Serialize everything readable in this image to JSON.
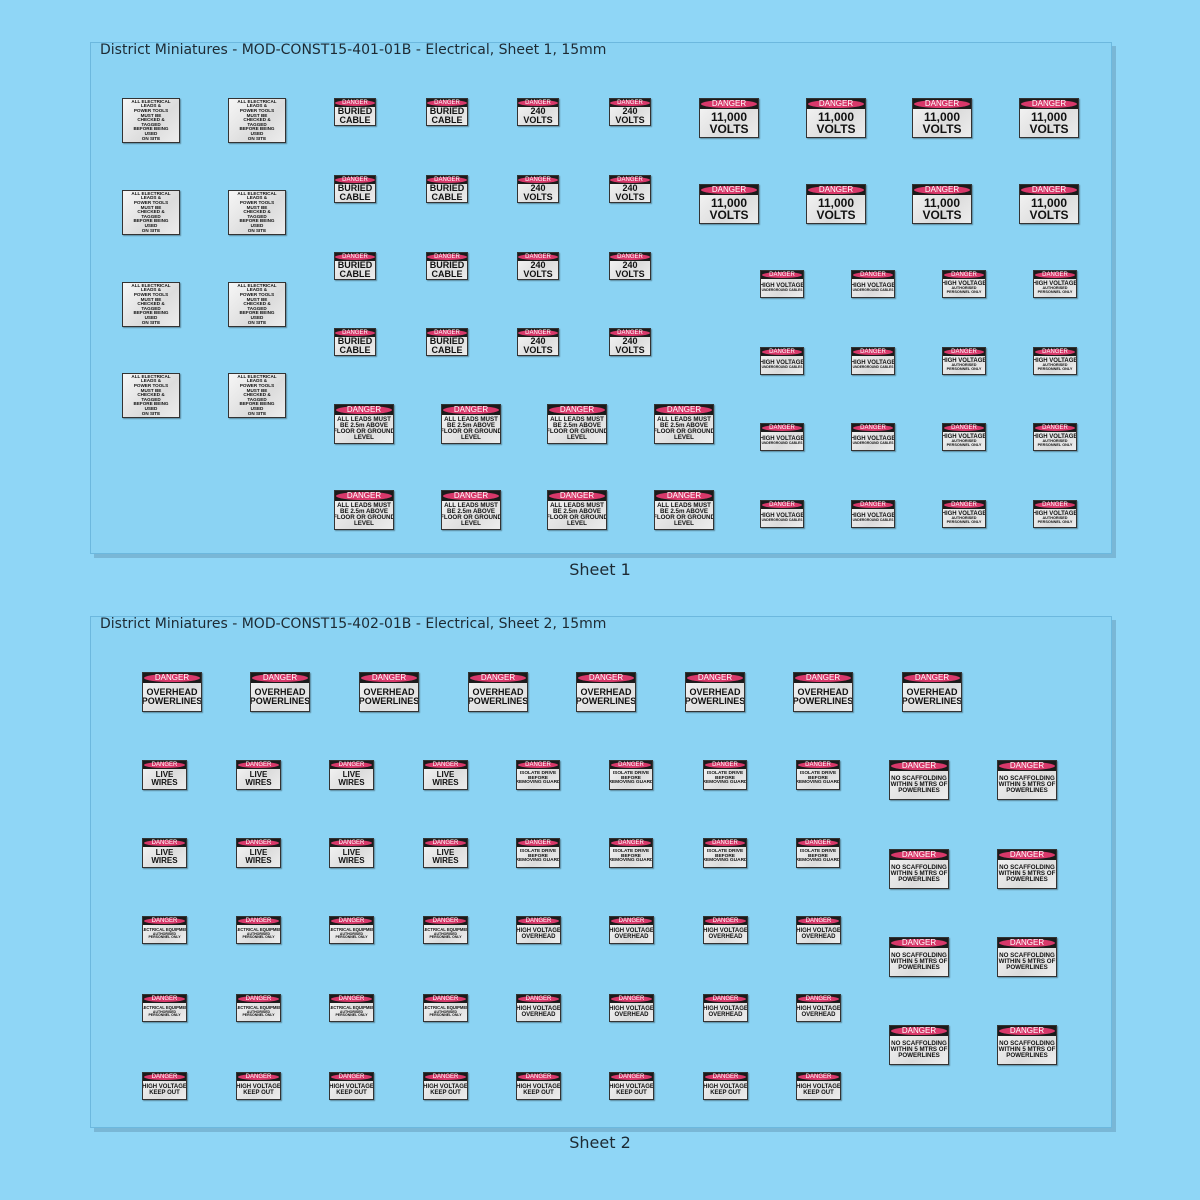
{
  "sheets": [
    {
      "title": "District Miniatures - MOD-CONST15-401-01B - Electrical, Sheet 1, 15mm",
      "caption": "Sheet 1",
      "signs": [
        {
          "lines": [
            "ALL ELECTRICAL",
            "LEADS &",
            "POWER TOOLS",
            "MUST BE",
            "CHECKED &",
            "TAGGED",
            "BEFORE BEING",
            "USED",
            "ON SITE"
          ]
        },
        {
          "header": "DANGER",
          "lines": [
            "BURIED",
            "CABLE"
          ]
        },
        {
          "header": "DANGER",
          "lines": [
            "240",
            "VOLTS"
          ]
        },
        {
          "header": "DANGER",
          "lines": [
            "11,000",
            "VOLTS"
          ]
        },
        {
          "header": "DANGER",
          "lines": [
            "ALL LEADS MUST",
            "BE 2.5m ABOVE",
            "FLOOR OR GROUND",
            "LEVEL"
          ]
        },
        {
          "header": "DANGER",
          "lines": [
            "HIGH VOLTAGE",
            "UNDERGROUND CABLES"
          ]
        },
        {
          "header": "DANGER",
          "lines": [
            "HIGH VOLTAGE",
            "AUTHORISED",
            "PERSONNEL ONLY"
          ]
        }
      ]
    },
    {
      "title": "District Miniatures - MOD-CONST15-402-01B - Electrical, Sheet 2, 15mm",
      "caption": "Sheet 2",
      "signs": [
        {
          "header": "DANGER",
          "lines": [
            "OVERHEAD",
            "POWERLINES"
          ]
        },
        {
          "header": "DANGER",
          "lines": [
            "LIVE",
            "WIRES"
          ]
        },
        {
          "header": "DANGER",
          "lines": [
            "ISOLATE DRIVE",
            "BEFORE",
            "REMOVING GUARD"
          ]
        },
        {
          "header": "DANGER",
          "lines": [
            "NO SCAFFOLDING",
            "WITHIN 5 MTRS OF",
            "POWERLINES"
          ]
        },
        {
          "header": "DANGER",
          "lines": [
            "ELECTRICAL EQUIPMENT",
            "AUTHORISED",
            "PERSONNEL ONLY"
          ]
        },
        {
          "header": "DANGER",
          "lines": [
            "HIGH VOLTAGE",
            "OVERHEAD"
          ]
        },
        {
          "header": "DANGER",
          "lines": [
            "HIGH VOLTAGE",
            "KEEP OUT"
          ]
        }
      ]
    }
  ]
}
